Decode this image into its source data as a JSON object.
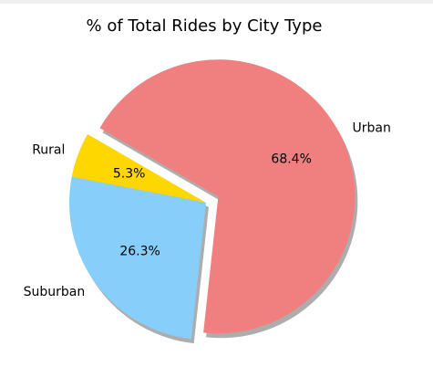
{
  "chart_data": {
    "type": "pie",
    "title": "% of Total Rides by City Type",
    "labels": [
      "Rural",
      "Suburban",
      "Urban"
    ],
    "values": [
      5.3,
      26.3,
      68.4
    ],
    "value_labels": [
      "5.3%",
      "26.3%",
      "68.4%"
    ],
    "colors": [
      "#FFD700",
      "#87CEFA",
      "#F08080"
    ],
    "explode": [
      0,
      0,
      0.1
    ],
    "shadow": true,
    "start_angle_deg": 150
  }
}
